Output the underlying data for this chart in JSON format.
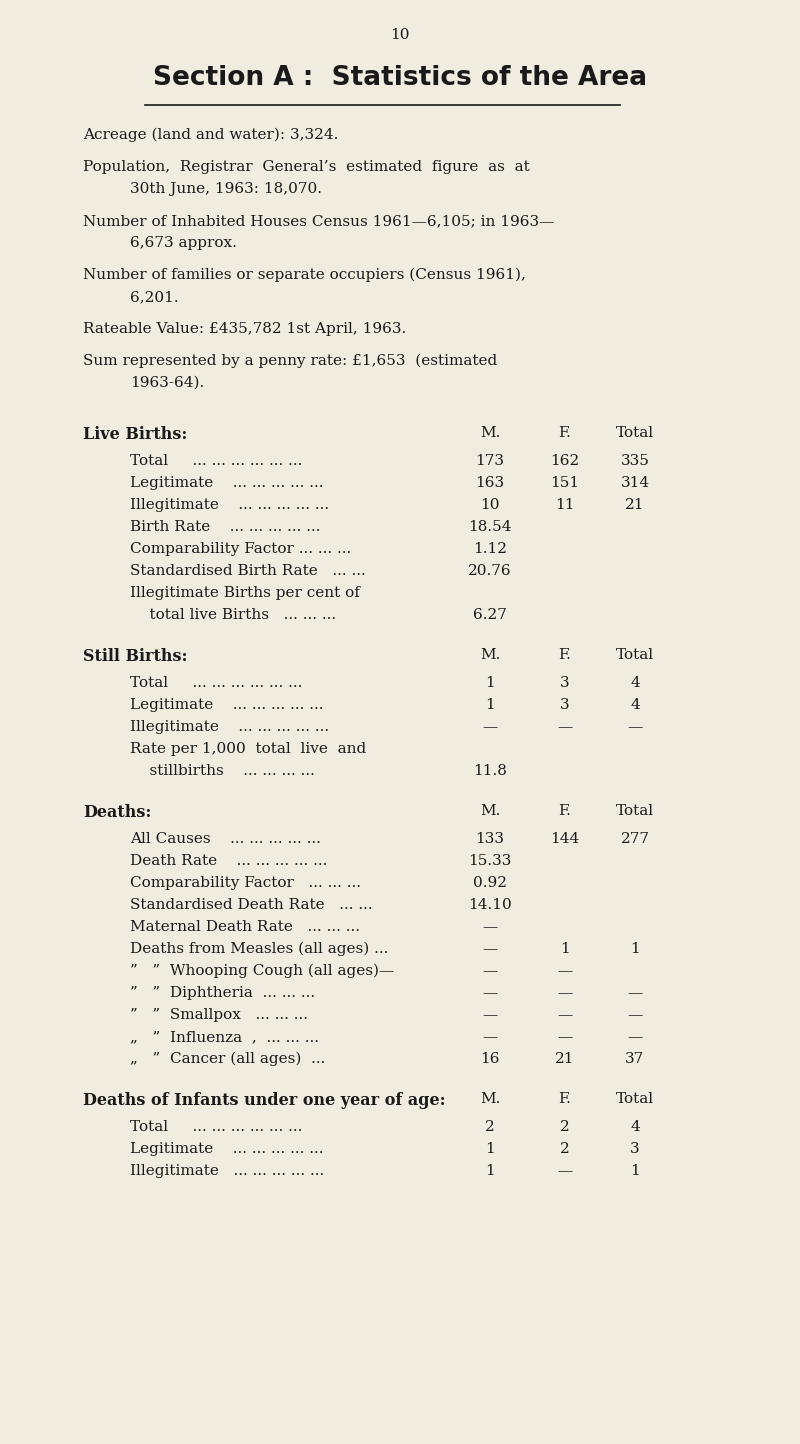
{
  "page_number": "10",
  "title": "Section A :  Statistics of the Area",
  "bg_color": "#f0ece0",
  "text_color": "#1a1a1a",
  "sections": [
    {
      "header": "Live Births:",
      "col_headers": [
        "M.",
        "F.",
        "Total"
      ],
      "rows": [
        {
          "label": "Total     ... ... ... ... ... ...",
          "values": [
            "173",
            "162",
            "335"
          ],
          "multiline": false
        },
        {
          "label": "Legitimate    ... ... ... ... ...",
          "values": [
            "163",
            "151",
            "314"
          ],
          "multiline": false
        },
        {
          "label": "Illegitimate    ... ... ... ... ...",
          "values": [
            "10",
            "11",
            "21"
          ],
          "multiline": false
        },
        {
          "label": "Birth Rate    ... ... ... ... ...",
          "values": [
            "18.54",
            "",
            ""
          ],
          "multiline": false
        },
        {
          "label": "Comparability Factor ... ... ...",
          "values": [
            "1.12",
            "",
            ""
          ],
          "multiline": false
        },
        {
          "label": "Standardised Birth Rate   ... ...",
          "values": [
            "20.76",
            "",
            ""
          ],
          "multiline": false
        },
        {
          "label": "Illegitimate Births per cent of",
          "values": [
            "",
            "",
            ""
          ],
          "multiline": true
        },
        {
          "label": "    total live Births   ... ... ...",
          "values": [
            "6.27",
            "",
            ""
          ],
          "multiline": false
        }
      ]
    },
    {
      "header": "Still Births:",
      "col_headers": [
        "M.",
        "F.",
        "Total"
      ],
      "rows": [
        {
          "label": "Total     ... ... ... ... ... ...",
          "values": [
            "1",
            "3",
            "4"
          ],
          "multiline": false
        },
        {
          "label": "Legitimate    ... ... ... ... ...",
          "values": [
            "1",
            "3",
            "4"
          ],
          "multiline": false
        },
        {
          "label": "Illegitimate    ... ... ... ... ...",
          "values": [
            "—",
            "—",
            "—"
          ],
          "multiline": false
        },
        {
          "label": "Rate per 1,000  total  live  and",
          "values": [
            "",
            "",
            ""
          ],
          "multiline": true
        },
        {
          "label": "    stillbirths    ... ... ... ...",
          "values": [
            "11.8",
            "",
            ""
          ],
          "multiline": false
        }
      ]
    },
    {
      "header": "Deaths:",
      "col_headers": [
        "M.",
        "F.",
        "Total"
      ],
      "rows": [
        {
          "label": "All Causes    ... ... ... ... ...",
          "values": [
            "133",
            "144",
            "277"
          ],
          "multiline": false
        },
        {
          "label": "Death Rate    ... ... ... ... ...",
          "values": [
            "15.33",
            "",
            ""
          ],
          "multiline": false
        },
        {
          "label": "Comparability Factor   ... ... ...",
          "values": [
            "0.92",
            "",
            ""
          ],
          "multiline": false
        },
        {
          "label": "Standardised Death Rate   ... ...",
          "values": [
            "14.10",
            "",
            ""
          ],
          "multiline": false
        },
        {
          "label": "Maternal Death Rate   ... ... ...",
          "values": [
            "—",
            "",
            ""
          ],
          "multiline": false
        },
        {
          "label": "Deaths from Measles (all ages) ...",
          "values": [
            "—",
            "1",
            "1"
          ],
          "multiline": false
        },
        {
          "label": "”   ”  Whooping Cough (all ages)—",
          "values": [
            "—",
            "—",
            ""
          ],
          "multiline": false
        },
        {
          "label": "”   ”  Diphtheria  ... ... ...",
          "values": [
            "—",
            "—",
            "—"
          ],
          "multiline": false
        },
        {
          "label": "”   ”  Smallpox   ... ... ...",
          "values": [
            "—",
            "—",
            "—"
          ],
          "multiline": false
        },
        {
          "label": "„   ”  Influenza  ,  ... ... ...",
          "values": [
            "—",
            "—",
            "—"
          ],
          "multiline": false
        },
        {
          "label": "„   ”  Cancer (all ages)  ...",
          "values": [
            "16",
            "21",
            "37"
          ],
          "multiline": false
        }
      ]
    },
    {
      "header": "Deaths of Infants under one year of age:",
      "col_headers": [
        "M.",
        "F.",
        "Total"
      ],
      "rows": [
        {
          "label": "Total     ... ... ... ... ... ...",
          "values": [
            "2",
            "2",
            "4"
          ],
          "multiline": false
        },
        {
          "label": "Legitimate    ... ... ... ... ...",
          "values": [
            "1",
            "2",
            "3"
          ],
          "multiline": false
        },
        {
          "label": "Illegitimate   ... ... ... ... ...",
          "values": [
            "1",
            "—",
            "1"
          ],
          "multiline": false
        }
      ]
    }
  ]
}
